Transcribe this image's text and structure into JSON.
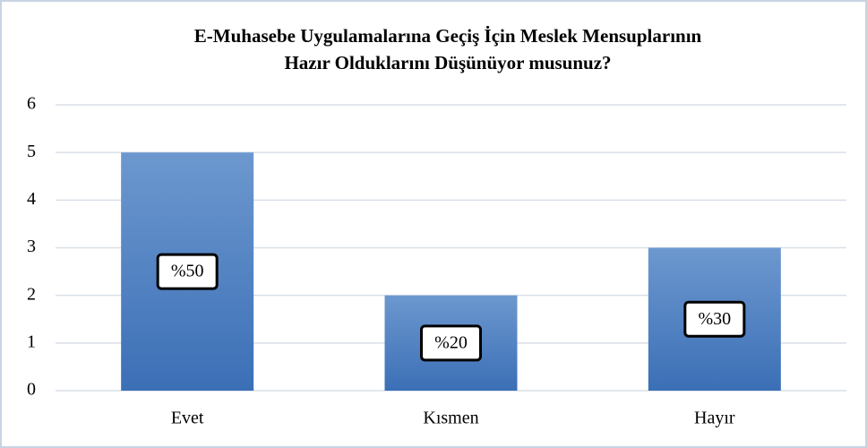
{
  "chart_data": {
    "type": "bar",
    "title": [
      "E-Muhasebe Uygulamalarına  Geçiş İçin Meslek Mensuplarının",
      "Hazır Olduklarını  Düşünüyor musunuz?"
    ],
    "categories": [
      "Evet",
      "Kısmen",
      "Hayır"
    ],
    "values": [
      5,
      2,
      3
    ],
    "data_labels": [
      "%50",
      "%20",
      "%30"
    ],
    "color": "#4f81bd",
    "ylim": [
      0,
      6
    ],
    "yticks": [
      0,
      1,
      2,
      3,
      4,
      5,
      6
    ],
    "grid": true
  }
}
